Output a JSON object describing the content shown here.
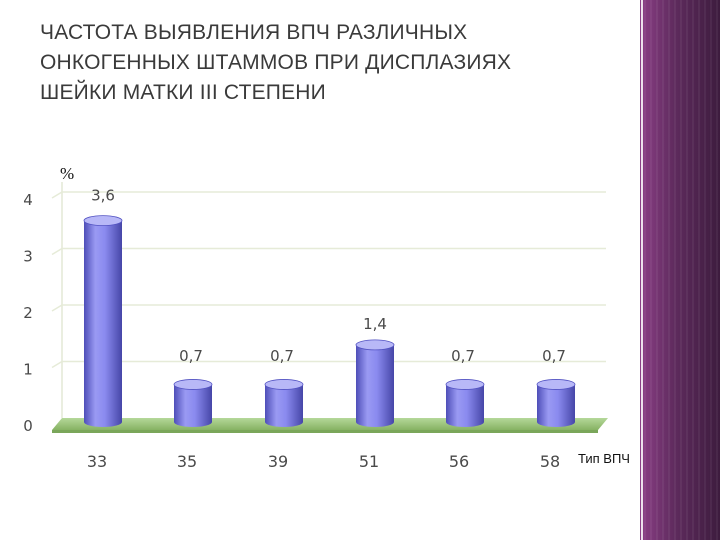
{
  "title_lines": [
    "ЧАСТОТА ВЫЯВЛЕНИЯ ВПЧ РАЗЛИЧНЫХ",
    "ОНКОГЕННЫХ ШТАММОВ ПРИ ДИСПЛАЗИЯХ",
    "ШЕЙКИ МАТКИ III СТЕПЕНИ"
  ],
  "colors": {
    "bar": "#8585ee",
    "bar_dark": "#5252c2",
    "bar_top": "#b8b8f7",
    "floor": "#9cc67a",
    "label": "#4a4a4a",
    "sidebar": "#5d2a5c"
  },
  "chart_data": {
    "type": "bar",
    "title": "ЧАСТОТА ВЫЯВЛЕНИЯ ВПЧ РАЗЛИЧНЫХ ОНКОГЕННЫХ ШТАММОВ ПРИ ДИСПЛАЗИЯХ ШЕЙКИ МАТКИ III СТЕПЕНИ",
    "ylabel": "%",
    "xlabel": "Тип ВПЧ",
    "categories": [
      "33",
      "35",
      "39",
      "51",
      "56",
      "58"
    ],
    "values": [
      3.6,
      0.7,
      0.7,
      1.4,
      0.7,
      0.7
    ],
    "data_labels": [
      "3,6",
      "0,7",
      "0,7",
      "1,4",
      "0,7",
      "0,7"
    ],
    "yticks": [
      "0",
      "1",
      "2",
      "3",
      "4"
    ],
    "ylim": [
      0,
      4
    ],
    "grid": true,
    "style": "3d-cylinder"
  }
}
